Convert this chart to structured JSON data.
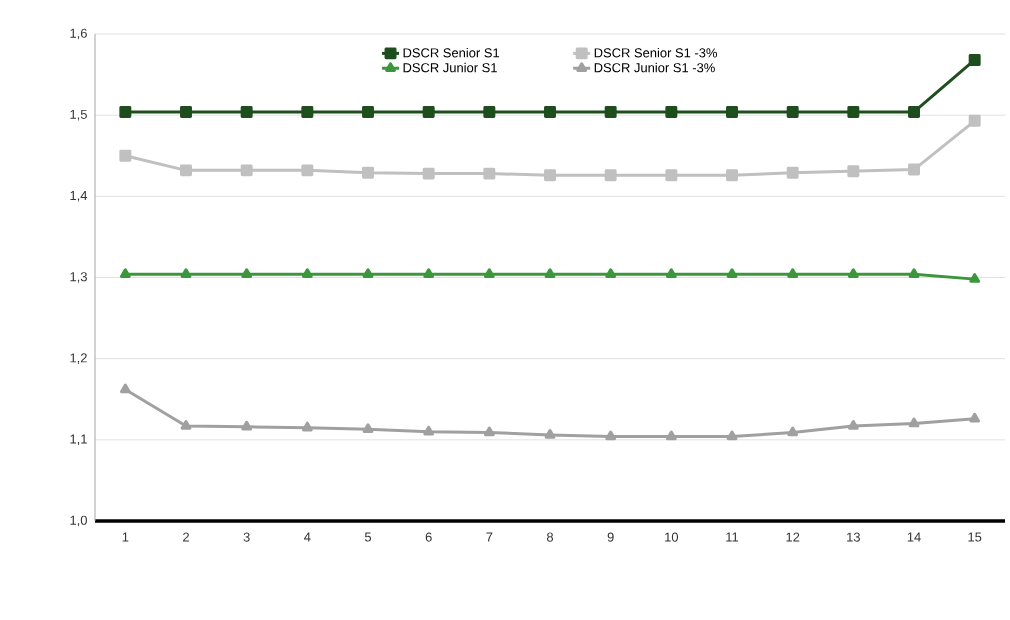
{
  "chart_data": {
    "type": "line",
    "categories": [
      "1",
      "2",
      "3",
      "4",
      "5",
      "6",
      "7",
      "8",
      "9",
      "10",
      "11",
      "12",
      "13",
      "14",
      "15"
    ],
    "series": [
      {
        "name": "DSCR Senior S1",
        "color": "#1e4d1e",
        "marker": "square",
        "values": [
          1.504,
          1.504,
          1.504,
          1.504,
          1.504,
          1.504,
          1.504,
          1.504,
          1.504,
          1.504,
          1.504,
          1.504,
          1.504,
          1.504,
          1.568
        ]
      },
      {
        "name": "DSCR Senior S1 -3%",
        "color": "#c0c0c0",
        "marker": "square",
        "values": [
          1.45,
          1.432,
          1.432,
          1.432,
          1.429,
          1.428,
          1.428,
          1.426,
          1.426,
          1.426,
          1.426,
          1.429,
          1.431,
          1.433,
          1.493
        ]
      },
      {
        "name": "DSCR Junior S1",
        "color": "#3c963c",
        "marker": "triangle",
        "values": [
          1.304,
          1.304,
          1.304,
          1.304,
          1.304,
          1.304,
          1.304,
          1.304,
          1.304,
          1.304,
          1.304,
          1.304,
          1.304,
          1.304,
          1.298
        ]
      },
      {
        "name": "DSCR Junior S1 -3%",
        "color": "#a0a0a0",
        "marker": "triangle",
        "values": [
          1.162,
          1.117,
          1.116,
          1.115,
          1.113,
          1.11,
          1.109,
          1.106,
          1.104,
          1.104,
          1.104,
          1.109,
          1.117,
          1.12,
          1.126
        ]
      }
    ],
    "ylim": [
      1.0,
      1.6
    ],
    "yticks": [
      {
        "value": 1.0,
        "label": "1,0"
      },
      {
        "value": 1.1,
        "label": "1,1"
      },
      {
        "value": 1.2,
        "label": "1,2"
      },
      {
        "value": 1.3,
        "label": "1,3"
      },
      {
        "value": 1.4,
        "label": "1,4"
      },
      {
        "value": 1.5,
        "label": "1,5"
      },
      {
        "value": 1.6,
        "label": "1,6"
      }
    ],
    "grid": "y",
    "legend": "top",
    "line_style": "solid"
  }
}
